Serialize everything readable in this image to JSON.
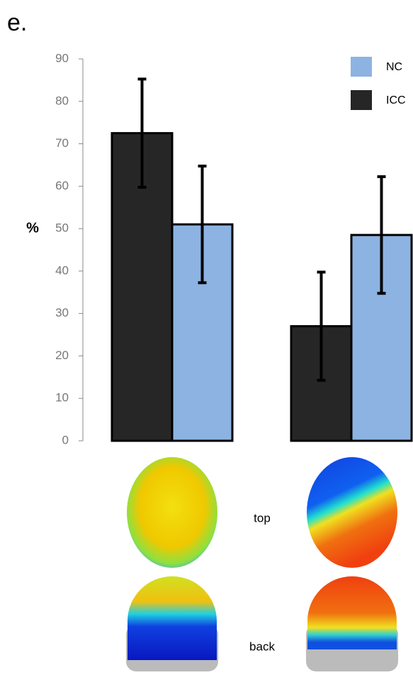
{
  "chart_data": {
    "type": "bar",
    "panel_label": "e.",
    "ylabel": "%",
    "categories": [
      null,
      null
    ],
    "series": [
      {
        "name": "ICC",
        "color": "#262626",
        "values": [
          72.5,
          27
        ],
        "errors": [
          12.75,
          12.75
        ]
      },
      {
        "name": "NC",
        "color": "#8db3e2",
        "values": [
          51,
          48.5
        ],
        "errors": [
          13.75,
          13.75
        ]
      }
    ],
    "ylim": [
      0,
      90
    ],
    "yticks": [
      0,
      10,
      20,
      30,
      40,
      50,
      60,
      70,
      80,
      90
    ],
    "legend": "upper right",
    "annotations": [
      "top",
      "back"
    ]
  }
}
